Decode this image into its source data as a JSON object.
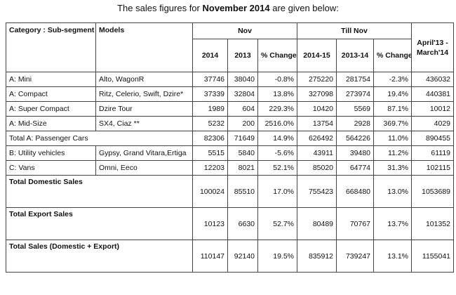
{
  "caption": {
    "prefix": "The sales figures for ",
    "emphasis": "November 2014",
    "suffix": " are given below:"
  },
  "header": {
    "category": "Category : Sub-segment",
    "models": "Models",
    "nov": "Nov",
    "till_nov": "Till Nov",
    "annual": "April'13 - March'14",
    "sub": [
      "2014",
      "2013",
      "% Change",
      "2014-15",
      "2013-14",
      "% Change"
    ]
  },
  "rows": [
    {
      "category": "A: Mini",
      "models": "Alto, WagonR",
      "v": [
        "37746",
        "38040",
        "-0.8%",
        "275220",
        "281754",
        "-2.3%",
        "436032"
      ]
    },
    {
      "category": "A: Compact",
      "models": "Ritz, Celerio, Swift, Dzire*",
      "v": [
        "37339",
        "32804",
        "13.8%",
        "327098",
        "273974",
        "19.4%",
        "440381"
      ]
    },
    {
      "category": "A: Super Compact",
      "models": "Dzire Tour",
      "v": [
        "1989",
        "604",
        "229.3%",
        "10420",
        "5569",
        "87.1%",
        "10012"
      ]
    },
    {
      "category": "A: Mid-Size",
      "models": "SX4, Ciaz **",
      "v": [
        "5232",
        "200",
        "2516.0%",
        "13754",
        "2928",
        "369.7%",
        "4029"
      ]
    },
    {
      "category": "Total A: Passenger Cars",
      "models": "",
      "v": [
        "82306",
        "71649",
        "14.9%",
        "626492",
        "564226",
        "11.0%",
        "890455"
      ]
    },
    {
      "category": "B: Utility vehicles",
      "models": "Gypsy, Grand Vitara,Ertiga",
      "v": [
        "5515",
        "5840",
        "-5.6%",
        "43911",
        "39480",
        "11.2%",
        "61119"
      ]
    },
    {
      "category": "C: Vans",
      "models": "Omni, Eeco",
      "v": [
        "12203",
        "8021",
        "52.1%",
        "85020",
        "64774",
        "31.3%",
        "102115"
      ]
    }
  ],
  "totals": [
    {
      "label": "Total Domestic Sales",
      "v": [
        "100024",
        "85510",
        "17.0%",
        "755423",
        "668480",
        "13.0%",
        "1053689"
      ]
    },
    {
      "label": "Total Export Sales",
      "v": [
        "10123",
        "6630",
        "52.7%",
        "80489",
        "70767",
        "13.7%",
        "101352"
      ]
    },
    {
      "label": "Total Sales (Domestic + Export)",
      "v": [
        "110147",
        "92140",
        "19.5%",
        "835912",
        "739247",
        "13.1%",
        "1155041"
      ]
    }
  ]
}
